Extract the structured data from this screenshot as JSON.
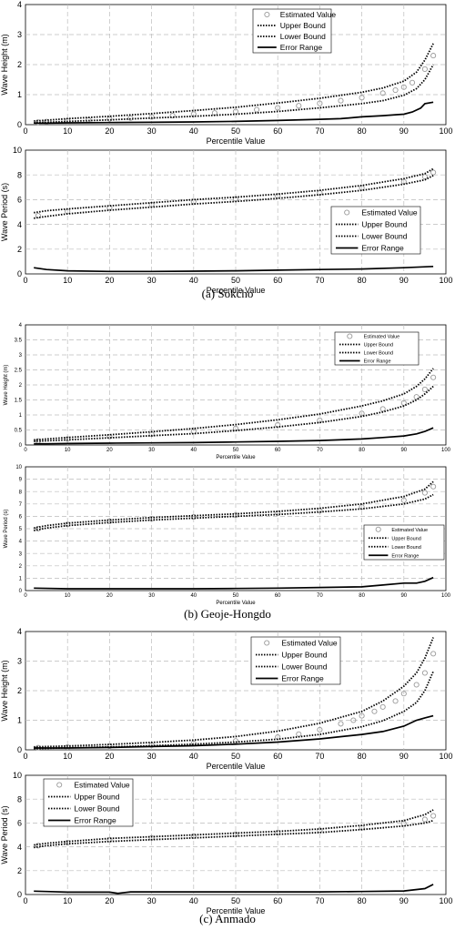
{
  "captions": [
    "(a)  Sokcho",
    "(b)  Geoje-Hongdo",
    "(c)  Anmado"
  ],
  "chart_data": [
    {
      "type": "line",
      "group": "(a) Sokcho",
      "title": "",
      "xlabel": "Percentile Value",
      "ylabel": "Wave Height (m)",
      "xlim": [
        0,
        100
      ],
      "ylim": [
        0,
        4
      ],
      "xticks": [
        0,
        10,
        20,
        30,
        40,
        50,
        60,
        70,
        80,
        90,
        100
      ],
      "yticks": [
        0,
        1,
        2,
        3,
        4
      ],
      "grid": true,
      "legend": "top-right",
      "series": [
        {
          "name": "Estimated Value",
          "style": "circles",
          "x": [
            3,
            5,
            10,
            15,
            20,
            25,
            30,
            35,
            40,
            45,
            50,
            55,
            60,
            65,
            70,
            75,
            80,
            85,
            88,
            90,
            92,
            95,
            97
          ],
          "y": [
            0.08,
            0.1,
            0.13,
            0.16,
            0.19,
            0.22,
            0.26,
            0.3,
            0.35,
            0.39,
            0.44,
            0.5,
            0.56,
            0.63,
            0.71,
            0.8,
            0.9,
            1.05,
            1.15,
            1.25,
            1.4,
            1.85,
            2.3
          ]
        },
        {
          "name": "Upper Bound",
          "style": "dotted",
          "x": [
            2,
            5,
            10,
            20,
            30,
            40,
            50,
            60,
            70,
            80,
            85,
            90,
            93,
            95,
            97
          ],
          "y": [
            0.12,
            0.15,
            0.2,
            0.28,
            0.37,
            0.47,
            0.58,
            0.72,
            0.88,
            1.08,
            1.22,
            1.45,
            1.75,
            2.15,
            2.7
          ]
        },
        {
          "name": "Lower Bound",
          "style": "dotted",
          "x": [
            2,
            5,
            10,
            20,
            30,
            40,
            50,
            60,
            70,
            80,
            85,
            90,
            93,
            95,
            97
          ],
          "y": [
            0.06,
            0.08,
            0.11,
            0.16,
            0.22,
            0.28,
            0.35,
            0.44,
            0.56,
            0.7,
            0.8,
            0.98,
            1.2,
            1.5,
            2.0
          ]
        },
        {
          "name": "Error Range",
          "style": "solid",
          "x": [
            2,
            5,
            10,
            20,
            30,
            40,
            50,
            60,
            70,
            75,
            80,
            85,
            88,
            90,
            92,
            94,
            95,
            97
          ],
          "y": [
            0.05,
            0.05,
            0.06,
            0.07,
            0.08,
            0.09,
            0.11,
            0.14,
            0.18,
            0.2,
            0.26,
            0.3,
            0.33,
            0.35,
            0.42,
            0.55,
            0.7,
            0.75
          ]
        }
      ]
    },
    {
      "type": "line",
      "group": "(a) Sokcho",
      "title": "",
      "xlabel": "Percentile Value",
      "ylabel": "Wave Period (s)",
      "xlim": [
        0,
        100
      ],
      "ylim": [
        0,
        10
      ],
      "xticks": [
        0,
        10,
        20,
        30,
        40,
        50,
        60,
        70,
        80,
        90,
        100
      ],
      "yticks": [
        0,
        2,
        4,
        6,
        8,
        10
      ],
      "grid": true,
      "legend": "bottom-right",
      "series": [
        {
          "name": "Estimated Value",
          "style": "circles",
          "x": [
            3,
            10,
            20,
            30,
            40,
            50,
            60,
            70,
            80,
            90,
            95,
            97
          ],
          "y": [
            4.7,
            5.05,
            5.35,
            5.6,
            5.85,
            6.05,
            6.3,
            6.55,
            6.95,
            7.45,
            7.85,
            8.2
          ]
        },
        {
          "name": "Upper Bound",
          "style": "dotted",
          "x": [
            2,
            5,
            10,
            20,
            30,
            40,
            50,
            60,
            70,
            80,
            90,
            95,
            97
          ],
          "y": [
            4.95,
            5.1,
            5.25,
            5.5,
            5.75,
            6.0,
            6.2,
            6.45,
            6.75,
            7.15,
            7.7,
            8.1,
            8.5
          ]
        },
        {
          "name": "Lower Bound",
          "style": "dotted",
          "x": [
            2,
            5,
            10,
            20,
            30,
            40,
            50,
            60,
            70,
            80,
            90,
            95,
            97
          ],
          "y": [
            4.5,
            4.65,
            4.85,
            5.15,
            5.4,
            5.65,
            5.85,
            6.1,
            6.4,
            6.75,
            7.25,
            7.6,
            7.95
          ]
        },
        {
          "name": "Error Range",
          "style": "solid",
          "x": [
            2,
            5,
            10,
            20,
            30,
            40,
            50,
            60,
            70,
            80,
            90,
            97
          ],
          "y": [
            0.5,
            0.35,
            0.25,
            0.2,
            0.2,
            0.22,
            0.25,
            0.3,
            0.35,
            0.4,
            0.5,
            0.6
          ]
        }
      ]
    },
    {
      "type": "line",
      "group": "(b) Geoje-Hongdo",
      "title": "",
      "xlabel": "Percentile Value",
      "ylabel": "Wave Height (m)",
      "xlim": [
        0,
        100
      ],
      "ylim": [
        0,
        4
      ],
      "xticks": [
        0,
        10,
        20,
        30,
        40,
        50,
        60,
        70,
        80,
        90,
        100
      ],
      "yticks": [
        0,
        0.5,
        1,
        1.5,
        2,
        2.5,
        3,
        3.5,
        4
      ],
      "grid": true,
      "legend": "top-right",
      "series": [
        {
          "name": "Estimated Value",
          "style": "circles",
          "x": [
            3,
            10,
            20,
            30,
            40,
            50,
            60,
            70,
            80,
            85,
            90,
            93,
            95,
            97
          ],
          "y": [
            0.13,
            0.2,
            0.28,
            0.36,
            0.45,
            0.55,
            0.67,
            0.82,
            1.05,
            1.2,
            1.4,
            1.6,
            1.85,
            2.25
          ]
        },
        {
          "name": "Upper Bound",
          "style": "dotted",
          "x": [
            2,
            5,
            10,
            20,
            30,
            40,
            50,
            60,
            70,
            80,
            85,
            90,
            93,
            95,
            97
          ],
          "y": [
            0.17,
            0.2,
            0.25,
            0.34,
            0.44,
            0.55,
            0.68,
            0.84,
            1.03,
            1.3,
            1.47,
            1.7,
            1.95,
            2.2,
            2.55
          ]
        },
        {
          "name": "Lower Bound",
          "style": "dotted",
          "x": [
            2,
            5,
            10,
            20,
            30,
            40,
            50,
            60,
            70,
            80,
            85,
            90,
            93,
            95,
            97
          ],
          "y": [
            0.12,
            0.14,
            0.17,
            0.24,
            0.31,
            0.38,
            0.48,
            0.6,
            0.75,
            0.95,
            1.1,
            1.3,
            1.5,
            1.7,
            1.95
          ]
        },
        {
          "name": "Error Range",
          "style": "solid",
          "x": [
            2,
            5,
            10,
            20,
            30,
            40,
            50,
            60,
            70,
            80,
            85,
            90,
            93,
            95,
            97
          ],
          "y": [
            0.04,
            0.04,
            0.05,
            0.06,
            0.07,
            0.08,
            0.1,
            0.12,
            0.15,
            0.2,
            0.25,
            0.3,
            0.37,
            0.45,
            0.57
          ]
        }
      ]
    },
    {
      "type": "line",
      "group": "(b) Geoje-Hongdo",
      "title": "",
      "xlabel": "Percentile Value",
      "ylabel": "Wave Period (s)",
      "xlim": [
        0,
        100
      ],
      "ylim": [
        0,
        10
      ],
      "xticks": [
        0,
        10,
        20,
        30,
        40,
        50,
        60,
        70,
        80,
        90,
        100
      ],
      "yticks": [
        0,
        1,
        2,
        3,
        4,
        5,
        6,
        7,
        8,
        9,
        10
      ],
      "grid": true,
      "legend": "bottom-right",
      "series": [
        {
          "name": "Estimated Value",
          "style": "circles",
          "x": [
            3,
            10,
            20,
            30,
            40,
            50,
            60,
            70,
            80,
            90,
            95,
            97
          ],
          "y": [
            5.0,
            5.35,
            5.6,
            5.8,
            5.95,
            6.1,
            6.25,
            6.45,
            6.75,
            7.3,
            7.9,
            8.4
          ]
        },
        {
          "name": "Upper Bound",
          "style": "dotted",
          "x": [
            2,
            5,
            10,
            20,
            30,
            40,
            50,
            60,
            70,
            80,
            90,
            95,
            97
          ],
          "y": [
            5.05,
            5.25,
            5.45,
            5.7,
            5.9,
            6.05,
            6.2,
            6.4,
            6.65,
            7.0,
            7.6,
            8.2,
            8.8
          ]
        },
        {
          "name": "Lower Bound",
          "style": "dotted",
          "x": [
            2,
            5,
            10,
            20,
            30,
            40,
            50,
            60,
            70,
            80,
            90,
            95,
            97
          ],
          "y": [
            4.85,
            5.05,
            5.25,
            5.5,
            5.7,
            5.85,
            6.0,
            6.15,
            6.35,
            6.6,
            7.0,
            7.4,
            7.75
          ]
        },
        {
          "name": "Error Range",
          "style": "solid",
          "x": [
            2,
            10,
            20,
            30,
            40,
            50,
            60,
            70,
            80,
            85,
            90,
            93,
            95,
            97
          ],
          "y": [
            0.2,
            0.15,
            0.15,
            0.15,
            0.15,
            0.17,
            0.2,
            0.25,
            0.3,
            0.45,
            0.6,
            0.6,
            0.75,
            1.05
          ]
        }
      ]
    },
    {
      "type": "line",
      "group": "(c) Anmado",
      "title": "",
      "xlabel": "Percentile Value",
      "ylabel": "Wave Height (m)",
      "xlim": [
        0,
        100
      ],
      "ylim": [
        0,
        4
      ],
      "xticks": [
        0,
        10,
        20,
        30,
        40,
        50,
        60,
        70,
        80,
        90,
        100
      ],
      "yticks": [
        0,
        1,
        2,
        3,
        4
      ],
      "grid": true,
      "legend": "top-right",
      "series": [
        {
          "name": "Estimated Value",
          "style": "circles",
          "x": [
            3,
            10,
            20,
            30,
            40,
            50,
            60,
            65,
            70,
            75,
            78,
            80,
            83,
            85,
            88,
            90,
            93,
            95,
            97
          ],
          "y": [
            0.07,
            0.09,
            0.12,
            0.16,
            0.22,
            0.3,
            0.43,
            0.53,
            0.68,
            0.88,
            1.0,
            1.15,
            1.3,
            1.45,
            1.65,
            1.9,
            2.2,
            2.6,
            3.25
          ]
        },
        {
          "name": "Upper Bound",
          "style": "dotted",
          "x": [
            2,
            5,
            10,
            20,
            30,
            40,
            50,
            60,
            70,
            80,
            85,
            90,
            93,
            95,
            97
          ],
          "y": [
            0.1,
            0.11,
            0.13,
            0.18,
            0.25,
            0.33,
            0.45,
            0.63,
            0.9,
            1.3,
            1.65,
            2.15,
            2.6,
            3.1,
            3.8
          ]
        },
        {
          "name": "Lower Bound",
          "style": "dotted",
          "x": [
            2,
            5,
            10,
            20,
            30,
            40,
            50,
            60,
            70,
            80,
            85,
            90,
            93,
            95,
            97
          ],
          "y": [
            0.04,
            0.05,
            0.07,
            0.1,
            0.14,
            0.19,
            0.26,
            0.36,
            0.52,
            0.78,
            0.98,
            1.3,
            1.6,
            2.0,
            2.65
          ]
        },
        {
          "name": "Error Range",
          "style": "solid",
          "x": [
            2,
            5,
            10,
            20,
            30,
            40,
            50,
            60,
            70,
            80,
            85,
            90,
            93,
            95,
            97
          ],
          "y": [
            0.06,
            0.06,
            0.06,
            0.08,
            0.11,
            0.14,
            0.19,
            0.26,
            0.37,
            0.52,
            0.62,
            0.8,
            1.0,
            1.08,
            1.15
          ]
        }
      ]
    },
    {
      "type": "line",
      "group": "(c) Anmado",
      "title": "",
      "xlabel": "Percentile Value",
      "ylabel": "Wave Period (s)",
      "xlim": [
        0,
        100
      ],
      "ylim": [
        0,
        10
      ],
      "xticks": [
        0,
        10,
        20,
        30,
        40,
        50,
        60,
        70,
        80,
        90,
        100
      ],
      "yticks": [
        0,
        2,
        4,
        6,
        8,
        10
      ],
      "grid": true,
      "legend": "top-left",
      "series": [
        {
          "name": "Estimated Value",
          "style": "circles",
          "x": [
            3,
            10,
            20,
            30,
            40,
            50,
            60,
            70,
            80,
            90,
            95,
            97
          ],
          "y": [
            4.1,
            4.35,
            4.6,
            4.75,
            4.9,
            5.05,
            5.2,
            5.4,
            5.6,
            5.95,
            6.3,
            6.6
          ]
        },
        {
          "name": "Upper Bound",
          "style": "dotted",
          "x": [
            2,
            5,
            10,
            20,
            30,
            40,
            50,
            60,
            70,
            80,
            90,
            95,
            97
          ],
          "y": [
            4.15,
            4.3,
            4.45,
            4.7,
            4.85,
            5.0,
            5.15,
            5.3,
            5.5,
            5.8,
            6.2,
            6.7,
            7.1
          ]
        },
        {
          "name": "Lower Bound",
          "style": "dotted",
          "x": [
            2,
            5,
            10,
            20,
            30,
            40,
            50,
            60,
            70,
            80,
            90,
            95,
            97
          ],
          "y": [
            3.95,
            4.1,
            4.25,
            4.45,
            4.6,
            4.75,
            4.9,
            5.05,
            5.2,
            5.45,
            5.75,
            6.0,
            6.2
          ]
        },
        {
          "name": "Error Range",
          "style": "solid",
          "x": [
            2,
            5,
            10,
            20,
            22,
            25,
            30,
            40,
            50,
            60,
            70,
            80,
            90,
            95,
            97
          ],
          "y": [
            0.28,
            0.25,
            0.2,
            0.2,
            0.1,
            0.22,
            0.22,
            0.22,
            0.22,
            0.22,
            0.22,
            0.25,
            0.3,
            0.5,
            0.85
          ]
        }
      ]
    }
  ]
}
